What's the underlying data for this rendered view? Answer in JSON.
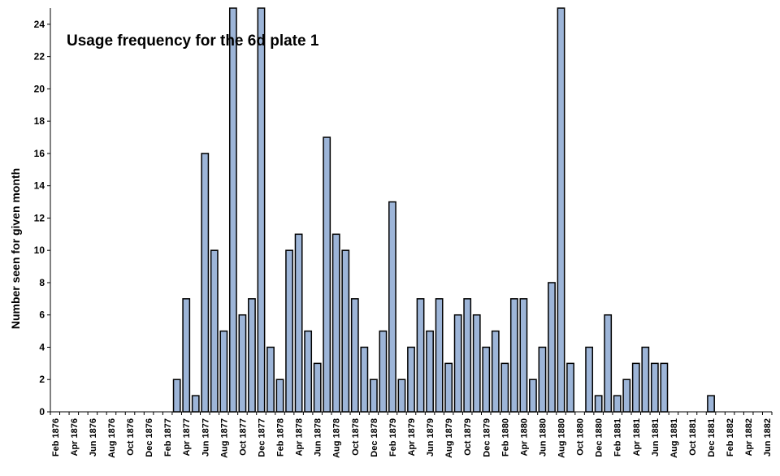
{
  "chart_data": {
    "type": "bar",
    "title": "Usage frequency for the 6d plate 1",
    "xlabel": "",
    "ylabel": "Number seen for given month",
    "ylim": [
      0,
      25
    ],
    "yticks": [
      0,
      2,
      4,
      6,
      8,
      10,
      12,
      14,
      16,
      18,
      20,
      22,
      24
    ],
    "grid": false,
    "legend": "none",
    "bar_color": "#9db5d8",
    "categories": [
      "Feb 1876",
      "Mar 1876",
      "Apr 1876",
      "May 1876",
      "Jun 1876",
      "Jul 1876",
      "Aug 1876",
      "Sep 1876",
      "Oct 1876",
      "Nov 1876",
      "Dec 1876",
      "Jan 1877",
      "Feb 1877",
      "Mar 1877",
      "Apr 1877",
      "May 1877",
      "Jun 1877",
      "Jul 1877",
      "Aug 1877",
      "Sep 1877",
      "Oct 1877",
      "Nov 1877",
      "Dec 1877",
      "Jan 1878",
      "Feb 1878",
      "Mar 1878",
      "Apr 1878",
      "May 1878",
      "Jun 1878",
      "Jul 1878",
      "Aug 1878",
      "Sep 1878",
      "Oct 1878",
      "Nov 1878",
      "Dec 1878",
      "Jan 1879",
      "Feb 1879",
      "Mar 1879",
      "Apr 1879",
      "May 1879",
      "Jun 1879",
      "Jul 1879",
      "Aug 1879",
      "Sep 1879",
      "Oct 1879",
      "Nov 1879",
      "Dec 1879",
      "Jan 1880",
      "Feb 1880",
      "Mar 1880",
      "Apr 1880",
      "May 1880",
      "Jun 1880",
      "Jul 1880",
      "Aug 1880",
      "Sep 1880",
      "Oct 1880",
      "Nov 1880",
      "Dec 1880",
      "Jan 1881",
      "Feb 1881",
      "Mar 1881",
      "Apr 1881",
      "May 1881",
      "Jun 1881",
      "Jul 1881",
      "Aug 1881",
      "Sep 1881",
      "Oct 1881",
      "Nov 1881",
      "Dec 1881",
      "Jan 1882",
      "Feb 1882",
      "Mar 1882",
      "Apr 1882",
      "May 1882",
      "Jun 1882"
    ],
    "tick_labels": [
      "Feb 1876",
      "Apr 1876",
      "Jun 1876",
      "Aug 1876",
      "Oct 1876",
      "Dec 1876",
      "Feb 1877",
      "Apr 1877",
      "Jun 1877",
      "Aug 1877",
      "Oct 1877",
      "Dec 1877",
      "Feb 1878",
      "Apr 1878",
      "Jun 1878",
      "Aug 1878",
      "Oct 1878",
      "Dec 1878",
      "Feb 1879",
      "Apr 1879",
      "Jun 1879",
      "Aug 1879",
      "Oct 1879",
      "Dec 1879",
      "Feb 1880",
      "Apr 1880",
      "Jun 1880",
      "Aug 1880",
      "Oct 1880",
      "Dec 1880",
      "Feb 1881",
      "Apr 1881",
      "Jun 1881",
      "Aug 1881",
      "Oct 1881",
      "Dec 1881",
      "Feb 1882",
      "Apr 1882",
      "Jun 1882"
    ],
    "values": [
      0,
      0,
      0,
      0,
      0,
      0,
      0,
      0,
      0,
      0,
      0,
      0,
      0,
      2,
      7,
      1,
      16,
      10,
      5,
      25,
      6,
      7,
      25,
      4,
      2,
      10,
      11,
      5,
      3,
      17,
      11,
      10,
      7,
      4,
      2,
      5,
      13,
      2,
      4,
      7,
      5,
      7,
      3,
      6,
      7,
      6,
      4,
      5,
      3,
      7,
      7,
      2,
      4,
      8,
      25,
      3,
      0,
      4,
      1,
      6,
      1,
      2,
      3,
      4,
      3,
      3,
      0,
      0,
      0,
      0,
      1,
      0,
      0,
      0,
      0,
      0,
      0
    ]
  }
}
